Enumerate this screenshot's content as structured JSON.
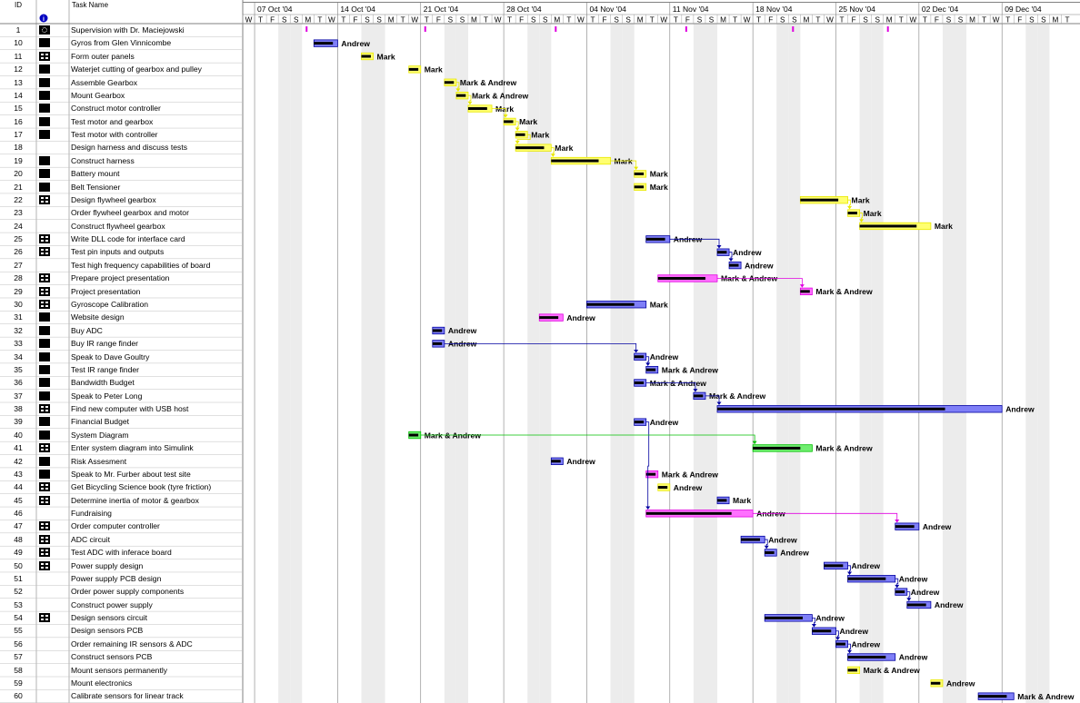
{
  "columns": {
    "id": "ID",
    "task_name": "Task Name"
  },
  "timeline": {
    "start": "2004-10-06",
    "weeks": [
      "07 Oct '04",
      "14 Oct '04",
      "21 Oct '04",
      "28 Oct '04",
      "04 Nov '04",
      "11 Nov '04",
      "18 Nov '04",
      "25 Nov '04",
      "02 Dec '04",
      "09 Dec '04"
    ],
    "day_letters": [
      "W",
      "T",
      "F",
      "S",
      "S",
      "M",
      "T"
    ]
  },
  "colors": {
    "yellow": "#ffff70",
    "yellow_line": "#e8e800",
    "blue": "#7f7ff7",
    "blue_line": "#0000a0",
    "pink": "#ff70ff",
    "pink_line": "#e000e0",
    "green": "#70ee70",
    "green_line": "#00c000",
    "weekend": "#ececec"
  },
  "tasks": [
    {
      "id": "1",
      "name": "Supervision with Dr. Maciejowski",
      "indicator": "dots",
      "color": "pink",
      "kind": "ticks",
      "ticks": [
        "2004-10-11",
        "2004-10-21",
        "2004-11-01",
        "2004-11-12",
        "2004-11-21",
        "2004-11-29"
      ]
    },
    {
      "id": "10",
      "name": "Gyros from Glen Vinnicombe",
      "indicator": "solid",
      "color": "blue",
      "start": "2004-10-12",
      "end": "2004-10-13",
      "label": "Andrew"
    },
    {
      "id": "11",
      "name": "Form outer panels",
      "indicator": "grid",
      "color": "yellow",
      "start": "2004-10-16",
      "end": "2004-10-16",
      "label": "Mark"
    },
    {
      "id": "12",
      "name": "Waterjet cutting of gearbox and pulley",
      "indicator": "solid",
      "color": "yellow",
      "start": "2004-10-20",
      "end": "2004-10-20",
      "label": "Mark"
    },
    {
      "id": "13",
      "name": "Assemble Gearbox",
      "indicator": "solid",
      "color": "yellow",
      "start": "2004-10-23",
      "end": "2004-10-23",
      "label": "Mark & Andrew"
    },
    {
      "id": "14",
      "name": "Mount Gearbox",
      "indicator": "solid",
      "color": "yellow",
      "start": "2004-10-24",
      "end": "2004-10-24",
      "label": "Mark & Andrew"
    },
    {
      "id": "15",
      "name": "Construct motor controller",
      "indicator": "solid",
      "color": "yellow",
      "start": "2004-10-25",
      "end": "2004-10-26",
      "label": "Mark"
    },
    {
      "id": "16",
      "name": "Test motor and gearbox",
      "indicator": "solid",
      "color": "yellow",
      "start": "2004-10-28",
      "end": "2004-10-28",
      "label": "Mark"
    },
    {
      "id": "17",
      "name": "Test motor with controller",
      "indicator": "solid",
      "color": "yellow",
      "start": "2004-10-29",
      "end": "2004-10-29",
      "label": "Mark"
    },
    {
      "id": "18",
      "name": "Design harness and discuss tests",
      "indicator": "none",
      "color": "yellow",
      "start": "2004-10-29",
      "end": "2004-10-31",
      "label": "Mark"
    },
    {
      "id": "19",
      "name": "Construct harness",
      "indicator": "solid",
      "color": "yellow",
      "start": "2004-11-01",
      "end": "2004-11-05",
      "label": "Mark"
    },
    {
      "id": "20",
      "name": "Battery mount",
      "indicator": "solid",
      "color": "yellow",
      "start": "2004-11-08",
      "end": "2004-11-08",
      "label": "Mark"
    },
    {
      "id": "21",
      "name": "Belt Tensioner",
      "indicator": "solid",
      "color": "yellow",
      "start": "2004-11-08",
      "end": "2004-11-08",
      "label": "Mark"
    },
    {
      "id": "22",
      "name": "Design flywheel gearbox",
      "indicator": "grid",
      "color": "yellow",
      "start": "2004-11-22",
      "end": "2004-11-25",
      "label": "Mark"
    },
    {
      "id": "23",
      "name": "Order flywheel gearbox and motor",
      "indicator": "none",
      "color": "yellow",
      "start": "2004-11-26",
      "end": "2004-11-26",
      "label": "Mark"
    },
    {
      "id": "24",
      "name": "Construct flywheel gearbox",
      "indicator": "none",
      "color": "yellow",
      "start": "2004-11-27",
      "end": "2004-12-02",
      "label": "Mark"
    },
    {
      "id": "25",
      "name": "Write DLL code for interface card",
      "indicator": "grid",
      "color": "blue",
      "start": "2004-11-09",
      "end": "2004-11-10",
      "label": "Andrew"
    },
    {
      "id": "26",
      "name": "Test pin inputs and outputs",
      "indicator": "grid",
      "color": "blue",
      "start": "2004-11-15",
      "end": "2004-11-15",
      "label": "Andrew"
    },
    {
      "id": "27",
      "name": "Test high frequency capabilities of board",
      "indicator": "none",
      "color": "blue",
      "start": "2004-11-16",
      "end": "2004-11-16",
      "label": "Andrew"
    },
    {
      "id": "28",
      "name": "Prepare project presentation",
      "indicator": "grid",
      "color": "pink",
      "start": "2004-11-10",
      "end": "2004-11-14",
      "label": "Mark & Andrew"
    },
    {
      "id": "29",
      "name": "Project presentation",
      "indicator": "grid",
      "color": "pink",
      "start": "2004-11-22",
      "end": "2004-11-22",
      "label": "Mark & Andrew"
    },
    {
      "id": "30",
      "name": "Gyroscope Calibration",
      "indicator": "grid",
      "color": "blue",
      "start": "2004-11-04",
      "end": "2004-11-08",
      "label": "Mark"
    },
    {
      "id": "31",
      "name": "Website design",
      "indicator": "solid",
      "color": "pink",
      "start": "2004-10-31",
      "end": "2004-11-01",
      "label": "Andrew"
    },
    {
      "id": "32",
      "name": "Buy ADC",
      "indicator": "solid",
      "color": "blue",
      "start": "2004-10-22",
      "end": "2004-10-22",
      "label": "Andrew"
    },
    {
      "id": "33",
      "name": "Buy IR range finder",
      "indicator": "solid",
      "color": "blue",
      "start": "2004-10-22",
      "end": "2004-10-22",
      "label": "Andrew"
    },
    {
      "id": "34",
      "name": "Speak to Dave Goultry",
      "indicator": "solid",
      "color": "blue",
      "start": "2004-11-08",
      "end": "2004-11-08",
      "label": "Andrew"
    },
    {
      "id": "35",
      "name": "Test IR range finder",
      "indicator": "solid",
      "color": "blue",
      "start": "2004-11-09",
      "end": "2004-11-09",
      "label": "Mark & Andrew"
    },
    {
      "id": "36",
      "name": "Bandwidth Budget",
      "indicator": "solid",
      "color": "blue",
      "start": "2004-11-08",
      "end": "2004-11-08",
      "label": "Mark & Andrew"
    },
    {
      "id": "37",
      "name": "Speak to Peter Long",
      "indicator": "solid",
      "color": "blue",
      "start": "2004-11-13",
      "end": "2004-11-13",
      "label": "Mark & Andrew"
    },
    {
      "id": "38",
      "name": "Find new computer with USB host",
      "indicator": "grid",
      "color": "blue",
      "start": "2004-11-15",
      "end": "2004-12-08",
      "label": "Andrew"
    },
    {
      "id": "39",
      "name": "Financial Budget",
      "indicator": "solid",
      "color": "blue",
      "start": "2004-11-08",
      "end": "2004-11-08",
      "label": "Andrew"
    },
    {
      "id": "40",
      "name": "System Diagram",
      "indicator": "solid",
      "color": "green",
      "start": "2004-10-20",
      "end": "2004-10-20",
      "label": "Mark & Andrew"
    },
    {
      "id": "41",
      "name": "Enter system diagram into Simulink",
      "indicator": "grid",
      "color": "green",
      "start": "2004-11-18",
      "end": "2004-11-22",
      "label": "Mark & Andrew"
    },
    {
      "id": "42",
      "name": "Risk Assesment",
      "indicator": "solid",
      "color": "blue",
      "start": "2004-11-01",
      "end": "2004-11-01",
      "label": "Andrew"
    },
    {
      "id": "43",
      "name": "Speak to Mr. Furber about test site",
      "indicator": "solid",
      "color": "pink",
      "start": "2004-11-09",
      "end": "2004-11-09",
      "label": "Mark & Andrew"
    },
    {
      "id": "44",
      "name": "Get Bicycling Science book (tyre friction)",
      "indicator": "grid",
      "color": "yellow",
      "start": "2004-11-10",
      "end": "2004-11-10",
      "label": "Andrew"
    },
    {
      "id": "45",
      "name": "Determine inertia of motor & gearbox",
      "indicator": "grid",
      "color": "blue",
      "start": "2004-11-15",
      "end": "2004-11-15",
      "label": "Mark"
    },
    {
      "id": "46",
      "name": "Fundraising",
      "indicator": "none",
      "color": "pink",
      "start": "2004-11-09",
      "end": "2004-11-17",
      "label": "Andrew"
    },
    {
      "id": "47",
      "name": "Order computer controller",
      "indicator": "grid",
      "color": "blue",
      "start": "2004-11-30",
      "end": "2004-12-01",
      "label": "Andrew"
    },
    {
      "id": "48",
      "name": "ADC circuit",
      "indicator": "grid",
      "color": "blue",
      "start": "2004-11-17",
      "end": "2004-11-18",
      "label": "Andrew"
    },
    {
      "id": "49",
      "name": "Test ADC with inferace board",
      "indicator": "grid",
      "color": "blue",
      "start": "2004-11-19",
      "end": "2004-11-19",
      "label": "Andrew"
    },
    {
      "id": "50",
      "name": "Power supply design",
      "indicator": "grid",
      "color": "blue",
      "start": "2004-11-24",
      "end": "2004-11-25",
      "label": "Andrew"
    },
    {
      "id": "51",
      "name": "Power supply PCB design",
      "indicator": "none",
      "color": "blue",
      "start": "2004-11-26",
      "end": "2004-11-29",
      "label": "Andrew"
    },
    {
      "id": "52",
      "name": "Order power supply components",
      "indicator": "none",
      "color": "blue",
      "start": "2004-11-30",
      "end": "2004-11-30",
      "label": "Andrew"
    },
    {
      "id": "53",
      "name": "Construct power supply",
      "indicator": "none",
      "color": "blue",
      "start": "2004-12-01",
      "end": "2004-12-02",
      "label": "Andrew"
    },
    {
      "id": "54",
      "name": "Design sensors circuit",
      "indicator": "grid",
      "color": "blue",
      "start": "2004-11-19",
      "end": "2004-11-22",
      "label": "Andrew"
    },
    {
      "id": "55",
      "name": "Design sensors PCB",
      "indicator": "none",
      "color": "blue",
      "start": "2004-11-23",
      "end": "2004-11-24",
      "label": "Andrew"
    },
    {
      "id": "56",
      "name": "Order remaining IR sensors & ADC",
      "indicator": "none",
      "color": "blue",
      "start": "2004-11-25",
      "end": "2004-11-25",
      "label": "Andrew"
    },
    {
      "id": "57",
      "name": "Construct sensors PCB",
      "indicator": "none",
      "color": "blue",
      "start": "2004-11-26",
      "end": "2004-11-29",
      "label": "Andrew"
    },
    {
      "id": "58",
      "name": "Mount sensors permanently",
      "indicator": "none",
      "color": "yellow",
      "start": "2004-11-26",
      "end": "2004-11-26",
      "label": "Mark & Andrew"
    },
    {
      "id": "59",
      "name": "Mount electronics",
      "indicator": "none",
      "color": "yellow",
      "start": "2004-12-03",
      "end": "2004-12-03",
      "label": "Andrew"
    },
    {
      "id": "60",
      "name": "Calibrate sensors for linear track",
      "indicator": "none",
      "color": "blue",
      "start": "2004-12-07",
      "end": "2004-12-09",
      "label": "Mark & Andrew"
    }
  ]
}
